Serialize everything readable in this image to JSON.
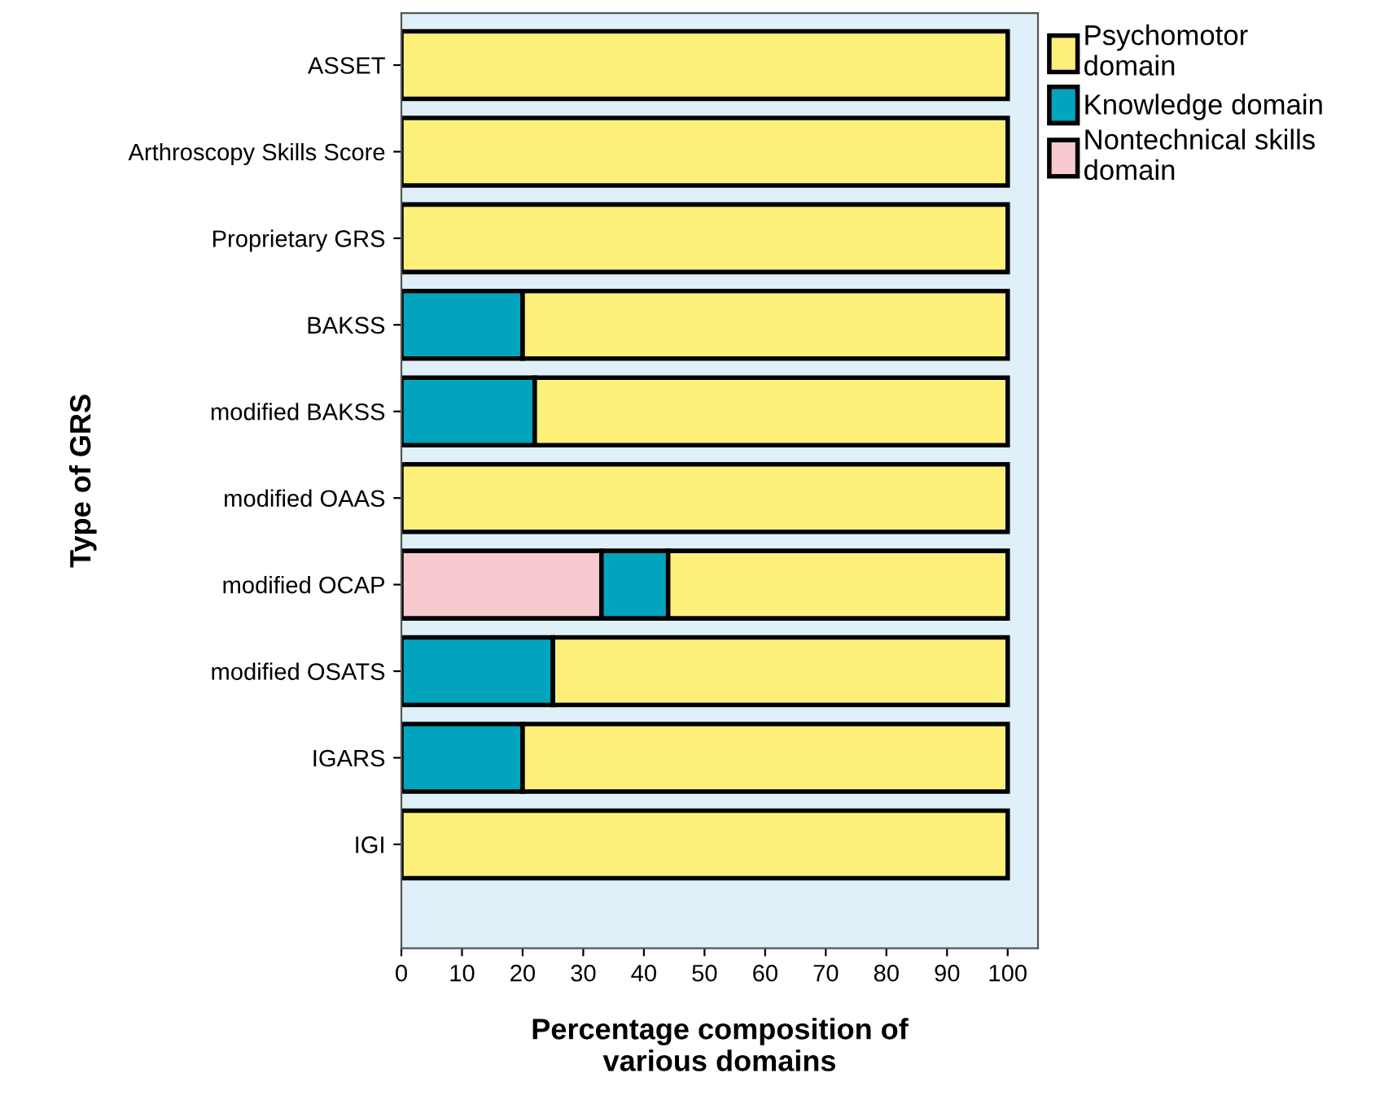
{
  "chart_data": {
    "type": "bar",
    "orientation": "horizontal",
    "stacked": true,
    "ylabel": "Type of GRS",
    "xlabel": "Percentage composition of\nvarious domains",
    "categories": [
      "ASSET",
      "Arthroscopy Skills Score",
      "Proprietary GRS",
      "BAKSS",
      "modified BAKSS",
      "modified OAAS",
      "modified OCAP",
      "modified OSATS",
      "IGARS",
      "IGI"
    ],
    "series": [
      {
        "name": "Nontechnical skills\ndomain",
        "color": "#f9c9d0",
        "values": [
          0,
          0,
          0,
          0,
          0,
          0,
          33,
          0,
          0,
          0
        ]
      },
      {
        "name": "Knowledge domain",
        "color": "#00a5bd",
        "values": [
          0,
          0,
          0,
          20,
          22,
          0,
          11,
          25,
          20,
          0
        ]
      },
      {
        "name": "Psychomotor\ndomain",
        "color": "#fdf07a",
        "values": [
          100,
          100,
          100,
          80,
          78,
          100,
          56,
          75,
          80,
          100
        ]
      }
    ],
    "xlim": [
      0,
      105
    ],
    "xticks": [
      0,
      10,
      20,
      30,
      40,
      50,
      60,
      70,
      80,
      90,
      100
    ],
    "grid": false,
    "legend": "top right"
  }
}
